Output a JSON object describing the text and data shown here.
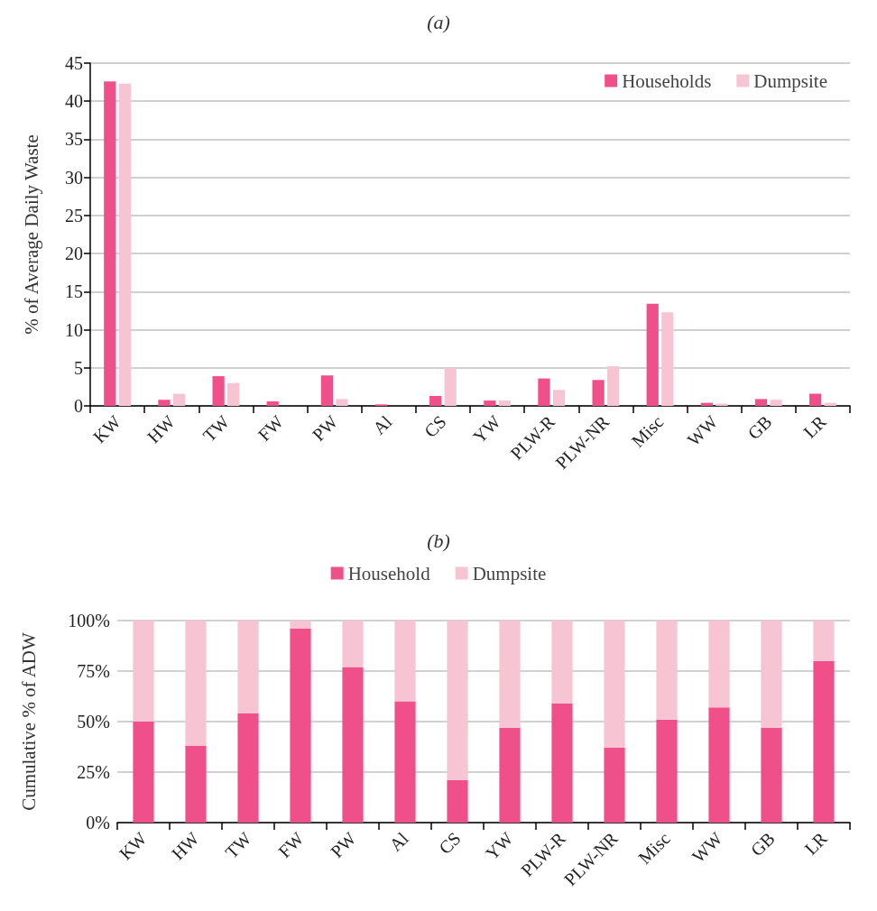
{
  "chart_data": [
    {
      "type": "bar",
      "title": "(a)",
      "ylabel": "% of Average Daily Waste",
      "categories": [
        "KW",
        "HW",
        "TW",
        "FW",
        "PW",
        "Al",
        "CS",
        "YW",
        "PLW-R",
        "PLW-NR",
        "Misc",
        "WW",
        "GB",
        "LR"
      ],
      "series": [
        {
          "name": "Households",
          "color": "#f0508a",
          "values": [
            42.6,
            0.8,
            3.9,
            0.6,
            4.0,
            0.2,
            1.3,
            0.7,
            3.6,
            3.4,
            13.4,
            0.4,
            0.9,
            1.6
          ]
        },
        {
          "name": "Dumpsite",
          "color": "#f7c4d4",
          "values": [
            42.3,
            1.6,
            3.0,
            0,
            0.9,
            0,
            5.0,
            0.7,
            2.1,
            5.2,
            12.3,
            0.3,
            0.8,
            0.4
          ]
        }
      ],
      "ylim": [
        0,
        45
      ],
      "yticks": [
        0,
        5,
        10,
        15,
        20,
        25,
        30,
        35,
        40,
        45
      ],
      "grid": "y",
      "legend": "top right"
    },
    {
      "type": "bar",
      "title": "(b)",
      "ylabel": "Cumulative % of ADW",
      "stacked": true,
      "categories": [
        "KW",
        "HW",
        "TW",
        "FW",
        "PW",
        "Al",
        "CS",
        "YW",
        "PLW-R",
        "PLW-NR",
        "Misc",
        "WW",
        "GB",
        "LR"
      ],
      "series": [
        {
          "name": "Household",
          "color": "#f0508a",
          "values": [
            50,
            38,
            54,
            96,
            77,
            60,
            21,
            47,
            59,
            37,
            51,
            57,
            47,
            80
          ]
        },
        {
          "name": "Dumpsite",
          "color": "#f7c4d4",
          "values": [
            50,
            62,
            46,
            4,
            23,
            40,
            79,
            53,
            41,
            63,
            49,
            43,
            53,
            20
          ]
        }
      ],
      "ylim": [
        0,
        100
      ],
      "yticks": [
        {
          "value": 0,
          "label": "0%"
        },
        {
          "value": 25,
          "label": "25%"
        },
        {
          "value": 50,
          "label": "50%"
        },
        {
          "value": 75,
          "label": "75%"
        },
        {
          "value": 100,
          "label": "100%"
        }
      ],
      "grid": "y",
      "legend": "top"
    }
  ]
}
